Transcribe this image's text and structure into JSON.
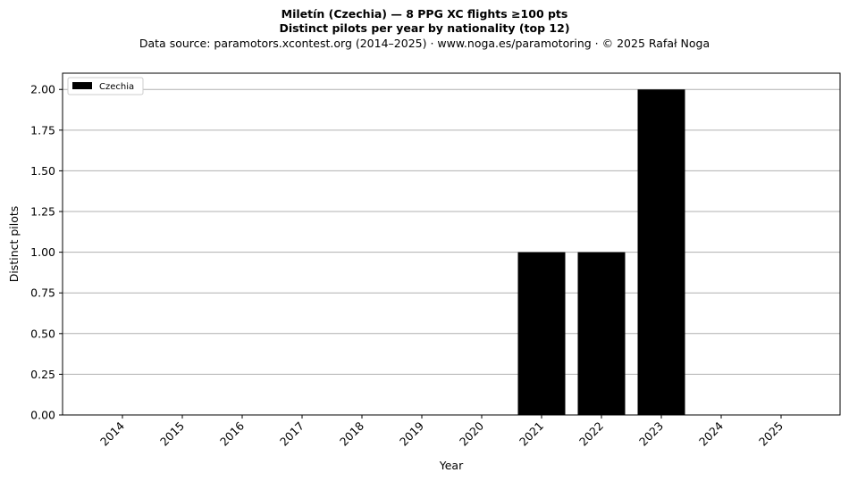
{
  "header": {
    "title_line1": "Miletín (Czechia)  —  8 PPG XC flights ≥100 pts",
    "title_line2": "Distinct pilots per year by nationality (top 12)",
    "subtitle": "Data source: paramotors.xcontest.org (2014–2025)  ·  www.noga.es/paramotoring  ·  © 2025 Rafał Noga"
  },
  "chart_data": {
    "type": "bar",
    "title": "Miletín (Czechia)  —  8 PPG XC flights ≥100 pts",
    "subtitle": "Distinct pilots per year by nationality (top 12)",
    "xlabel": "Year",
    "ylabel": "Distinct pilots",
    "categories": [
      "2014",
      "2015",
      "2016",
      "2017",
      "2018",
      "2019",
      "2020",
      "2021",
      "2022",
      "2023",
      "2024",
      "2025"
    ],
    "series": [
      {
        "name": "Czechia",
        "color": "#000000",
        "values": [
          0,
          0,
          0,
          0,
          0,
          0,
          0,
          1,
          1,
          2,
          0,
          0
        ]
      }
    ],
    "ylim": [
      0,
      2.1
    ],
    "yticks": [
      0,
      0.25,
      0.5,
      0.75,
      1.0,
      1.25,
      1.5,
      1.75,
      2.0
    ],
    "ytick_labels": [
      "0.00",
      "0.25",
      "0.50",
      "0.75",
      "1.00",
      "1.25",
      "1.50",
      "1.75",
      "2.00"
    ],
    "grid": "y",
    "grid_color": "#b0b0b0",
    "legend_position": "top-left"
  }
}
